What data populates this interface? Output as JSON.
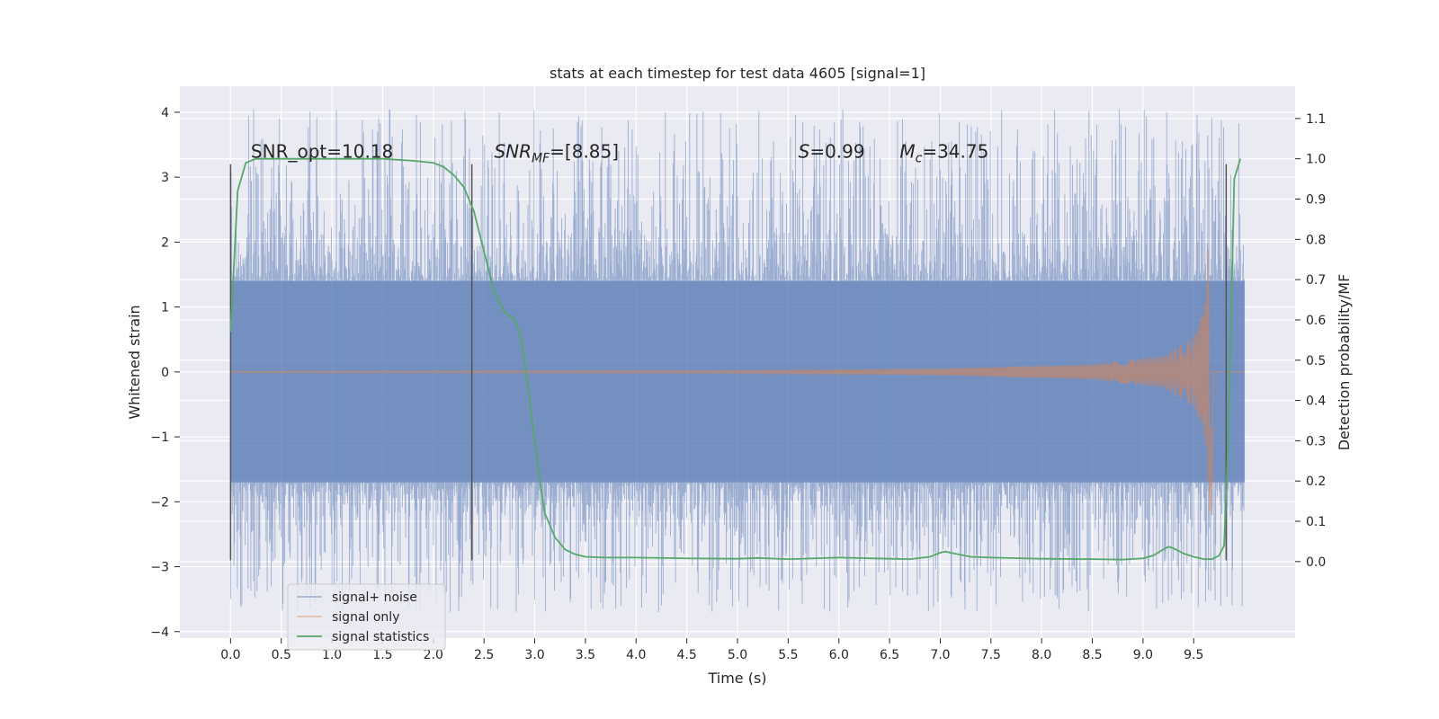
{
  "chart_data": {
    "type": "line",
    "title": "stats at each timestep for test data 4605 [signal=1]",
    "xlabel": "Time (s)",
    "ylabel": "Whitened strain",
    "ylabel_right": "Detection probability/MF",
    "xlim": [
      -0.5,
      10.5
    ],
    "ylim": [
      -4.1,
      4.4
    ],
    "ylim_right": [
      -0.19,
      1.18
    ],
    "x_ticks": [
      0.0,
      0.5,
      1.0,
      1.5,
      2.0,
      2.5,
      3.0,
      3.5,
      4.0,
      4.5,
      5.0,
      5.5,
      6.0,
      6.5,
      7.0,
      7.5,
      8.0,
      8.5,
      9.0,
      9.5
    ],
    "x_tick_labels": [
      "0.0",
      "0.5",
      "1.0",
      "1.5",
      "2.0",
      "2.5",
      "3.0",
      "3.5",
      "4.0",
      "4.5",
      "5.0",
      "5.5",
      "6.0",
      "6.5",
      "7.0",
      "7.5",
      "8.0",
      "8.5",
      "9.0",
      "9.5"
    ],
    "y_ticks": [
      -4,
      -3,
      -2,
      -1,
      0,
      1,
      2,
      3,
      4
    ],
    "y_tick_labels": [
      "−4",
      "−3",
      "−2",
      "−1",
      "0",
      "1",
      "2",
      "3",
      "4"
    ],
    "y_right_ticks": [
      0.0,
      0.1,
      0.2,
      0.3,
      0.4,
      0.5,
      0.6,
      0.7,
      0.8,
      0.9,
      1.0,
      1.1
    ],
    "y_right_tick_labels": [
      "0.0",
      "0.1",
      "0.2",
      "0.3",
      "0.4",
      "0.5",
      "0.6",
      "0.7",
      "0.8",
      "0.9",
      "1.0",
      "1.1"
    ],
    "grid": true,
    "legend_position": "lower-left",
    "series": [
      {
        "name": "signal+ noise",
        "color": "#4c72b0",
        "axis": "left",
        "kind": "noise-band",
        "x_range": [
          0.0,
          10.0
        ],
        "envelope": {
          "core": [
            -1.7,
            1.4
          ],
          "spikes": [
            -3.7,
            4.05
          ]
        }
      },
      {
        "name": "signal only",
        "color": "#dd8452",
        "axis": "left",
        "kind": "chirp",
        "x_range": [
          0.0,
          9.68
        ],
        "amplitude": {
          "x": [
            0.0,
            5.0,
            7.0,
            8.5,
            9.2,
            9.5,
            9.6,
            9.66,
            9.68
          ],
          "y": [
            0.01,
            0.02,
            0.05,
            0.12,
            0.25,
            0.55,
            1.0,
            2.2,
            2.5
          ]
        }
      },
      {
        "name": "signal statistics",
        "color": "#55a868",
        "axis": "right",
        "x": [
          0.0,
          0.07,
          0.15,
          0.25,
          0.5,
          1.0,
          1.5,
          1.8,
          2.0,
          2.1,
          2.2,
          2.3,
          2.4,
          2.5,
          2.6,
          2.7,
          2.8,
          2.85,
          2.9,
          2.95,
          3.0,
          3.05,
          3.1,
          3.2,
          3.3,
          3.4,
          3.5,
          3.7,
          4.0,
          4.5,
          5.0,
          5.2,
          5.5,
          6.0,
          6.5,
          6.7,
          6.9,
          7.0,
          7.05,
          7.1,
          7.3,
          7.5,
          8.0,
          8.5,
          8.8,
          9.0,
          9.1,
          9.2,
          9.25,
          9.3,
          9.4,
          9.5,
          9.6,
          9.68,
          9.75,
          9.8,
          9.84,
          9.9,
          9.96
        ],
        "y": [
          0.57,
          0.92,
          0.99,
          1.0,
          1.0,
          1.0,
          1.0,
          0.995,
          0.99,
          0.98,
          0.96,
          0.93,
          0.87,
          0.77,
          0.67,
          0.62,
          0.6,
          0.57,
          0.5,
          0.4,
          0.3,
          0.2,
          0.12,
          0.06,
          0.03,
          0.018,
          0.012,
          0.01,
          0.01,
          0.008,
          0.007,
          0.009,
          0.006,
          0.01,
          0.007,
          0.006,
          0.012,
          0.022,
          0.025,
          0.022,
          0.012,
          0.01,
          0.007,
          0.006,
          0.005,
          0.008,
          0.015,
          0.03,
          0.037,
          0.033,
          0.02,
          0.012,
          0.006,
          0.006,
          0.015,
          0.04,
          0.3,
          0.95,
          1.0
        ]
      }
    ],
    "vertical_markers": [
      0.0,
      2.38,
      9.82
    ],
    "vertical_marker_range": [
      -2.9,
      3.2
    ],
    "annotations": [
      {
        "text": "SNR_opt=10.18",
        "x": 0.2,
        "y": 3.3
      },
      {
        "text": "SNR",
        "sub": "MF",
        "tail": "=[8.85]",
        "x": 2.6,
        "y": 3.3,
        "italic": true
      },
      {
        "text": "S",
        "tail": "=0.99",
        "x": 5.6,
        "y": 3.3,
        "italic": true
      },
      {
        "text": "M",
        "sub": "c",
        "tail": "=34.75",
        "x": 6.6,
        "y": 3.3,
        "italic": true
      }
    ]
  }
}
